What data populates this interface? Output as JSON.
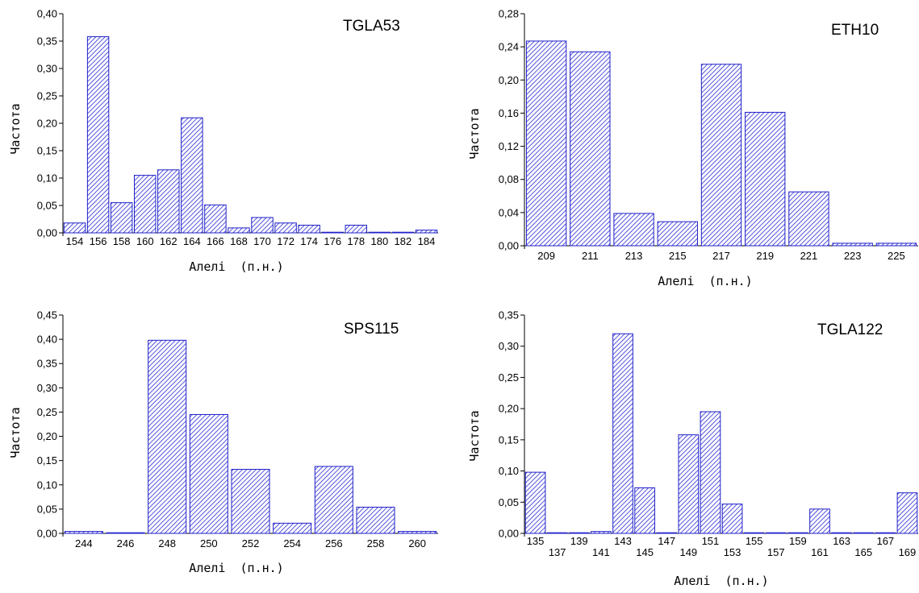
{
  "colors": {
    "bar_stroke": "#1f1fc8",
    "bar_hatch": "#2a2ad6",
    "bar_fill": "#ffffff",
    "axis": "#000000",
    "text": "#000000"
  },
  "chart_data": [
    {
      "type": "bar",
      "title": "TGLA53",
      "xlabel": "Алелі  (п.н.)",
      "ylabel": "Частота",
      "categories": [
        "154",
        "156",
        "158",
        "160",
        "162",
        "164",
        "166",
        "168",
        "170",
        "172",
        "174",
        "176",
        "178",
        "180",
        "182",
        "184"
      ],
      "values": [
        0.018,
        0.358,
        0.055,
        0.105,
        0.115,
        0.21,
        0.051,
        0.009,
        0.028,
        0.018,
        0.014,
        0.001,
        0.014,
        0.001,
        0.001,
        0.005
      ],
      "ylim": [
        0,
        0.4
      ],
      "yticks": [
        "0,00",
        "0,05",
        "0,10",
        "0,15",
        "0,20",
        "0,25",
        "0,30",
        "0,35",
        "0,40"
      ],
      "legend": "none",
      "grid": false
    },
    {
      "type": "bar",
      "title": "ETH10",
      "xlabel": "Алелі  (п.н.)",
      "ylabel": "Частота",
      "categories": [
        "209",
        "211",
        "213",
        "215",
        "217",
        "219",
        "221",
        "223",
        "225"
      ],
      "values": [
        0.247,
        0.234,
        0.039,
        0.029,
        0.219,
        0.161,
        0.065,
        0.003,
        0.003
      ],
      "ylim": [
        0,
        0.28
      ],
      "yticks": [
        "0,00",
        "0,04",
        "0,08",
        "0,12",
        "0,16",
        "0,20",
        "0,24",
        "0,28"
      ],
      "legend": "none",
      "grid": false
    },
    {
      "type": "bar",
      "title": "SPS115",
      "xlabel": "Алелі  (п.н.)",
      "ylabel": "Частота",
      "categories": [
        "244",
        "246",
        "248",
        "250",
        "252",
        "254",
        "256",
        "258",
        "260"
      ],
      "values": [
        0.004,
        0.001,
        0.398,
        0.245,
        0.132,
        0.021,
        0.138,
        0.054,
        0.004
      ],
      "ylim": [
        0,
        0.45
      ],
      "yticks": [
        "0,00",
        "0,05",
        "0,10",
        "0,15",
        "0,20",
        "0,25",
        "0,30",
        "0,35",
        "0,40",
        "0,45"
      ],
      "legend": "none",
      "grid": false
    },
    {
      "type": "bar",
      "title": "TGLA122",
      "xlabel": "Алелі  (п.н.)",
      "ylabel": "Частота",
      "categories": [
        "135",
        "137",
        "139",
        "141",
        "143",
        "145",
        "147",
        "149",
        "151",
        "153",
        "155",
        "157",
        "159",
        "161",
        "163",
        "165",
        "167",
        "169"
      ],
      "values": [
        0.098,
        0.001,
        0.001,
        0.003,
        0.32,
        0.073,
        0.001,
        0.158,
        0.195,
        0.047,
        0.001,
        0.001,
        0.001,
        0.039,
        0.001,
        0.001,
        0.001,
        0.065
      ],
      "ylim": [
        0,
        0.35
      ],
      "yticks": [
        "0,00",
        "0,05",
        "0,10",
        "0,15",
        "0,20",
        "0,25",
        "0,30",
        "0,35"
      ],
      "legend": "none",
      "grid": false
    }
  ]
}
